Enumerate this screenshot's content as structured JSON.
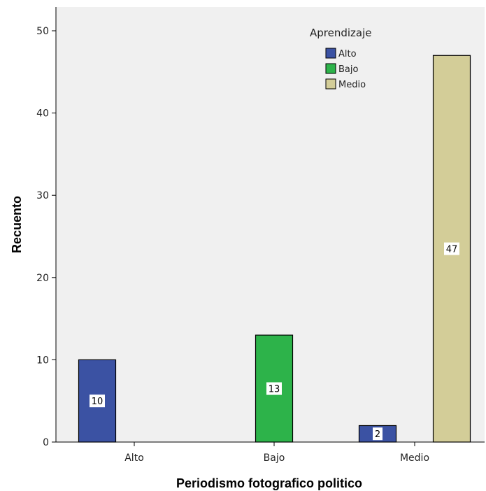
{
  "chart_data": {
    "type": "bar",
    "xlabel": "Periodismo fotografico politico",
    "ylabel": "Recuento",
    "categories": [
      "Alto",
      "Bajo",
      "Medio"
    ],
    "ylim": [
      0,
      50
    ],
    "yticks": [
      0,
      10,
      20,
      30,
      40,
      50
    ],
    "grid": false,
    "legend": {
      "title": "Aprendizaje",
      "position": "top-right"
    },
    "series": [
      {
        "name": "Alto",
        "color": "#3b52a3",
        "values": [
          10,
          0,
          2
        ]
      },
      {
        "name": "Bajo",
        "color": "#2db34a",
        "values": [
          0,
          13,
          0
        ]
      },
      {
        "name": "Medio",
        "color": "#d3cd98",
        "values": [
          0,
          0,
          47
        ]
      }
    ],
    "data_labels": [
      {
        "series": 0,
        "category": 0,
        "text": "10"
      },
      {
        "series": 1,
        "category": 1,
        "text": "13"
      },
      {
        "series": 0,
        "category": 2,
        "text": "2"
      },
      {
        "series": 2,
        "category": 2,
        "text": "47"
      }
    ],
    "colors": {
      "plot_background": "#f0f0f0",
      "bar_stroke": "#000000"
    }
  }
}
